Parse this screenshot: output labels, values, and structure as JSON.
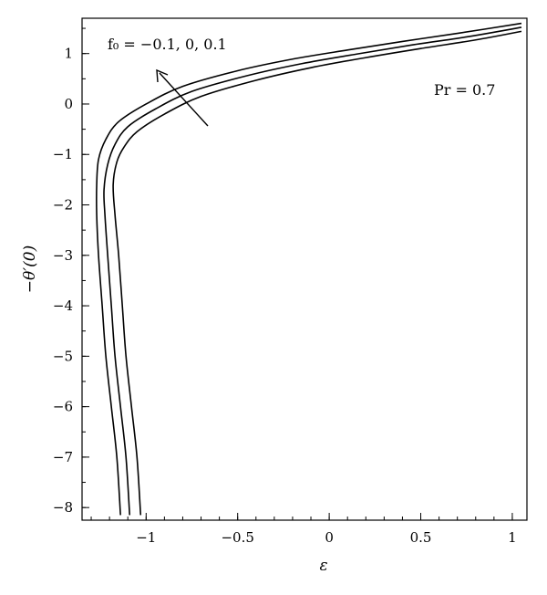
{
  "chart_data": {
    "type": "line",
    "title": "",
    "xlabel": "ε",
    "ylabel": "−θ′(0)",
    "xlim": [
      -1.35,
      1.08
    ],
    "ylim": [
      -8.25,
      1.7
    ],
    "xticks": [
      -1,
      -0.5,
      0,
      0.5,
      1
    ],
    "xtick_labels": [
      "−1",
      "−0.5",
      "0",
      "0.5",
      "1"
    ],
    "yticks": [
      1,
      0,
      -1,
      -2,
      -3,
      -4,
      -5,
      -6,
      -7,
      -8
    ],
    "ytick_labels": [
      "1",
      "0",
      "−1",
      "−2",
      "−3",
      "−4",
      "−5",
      "−6",
      "−7",
      "−8"
    ],
    "grid": false,
    "annotations": {
      "f0_label": "f₀ = −0.1, 0, 0.1",
      "pr_label": "Pr = 0.7"
    },
    "series": [
      {
        "x": [
          -1.14,
          -1.16,
          -1.19,
          -1.22,
          -1.24,
          -1.26,
          -1.27,
          -1.27,
          -1.26,
          -1.22,
          -1.15,
          -1.0,
          -0.8,
          -0.5,
          -0.2,
          0.1,
          0.4,
          0.7,
          1.05
        ],
        "y": [
          -8.15,
          -7.0,
          -6.0,
          -5.0,
          -4.0,
          -3.0,
          -2.2,
          -1.6,
          -1.1,
          -0.7,
          -0.35,
          0.0,
          0.35,
          0.66,
          0.89,
          1.07,
          1.24,
          1.4,
          1.6
        ]
      },
      {
        "x": [
          -1.09,
          -1.11,
          -1.14,
          -1.17,
          -1.19,
          -1.21,
          -1.225,
          -1.23,
          -1.21,
          -1.17,
          -1.1,
          -0.95,
          -0.75,
          -0.45,
          -0.15,
          0.15,
          0.45,
          0.75,
          1.05
        ],
        "y": [
          -8.15,
          -7.0,
          -6.0,
          -5.0,
          -4.0,
          -3.0,
          -2.2,
          -1.7,
          -1.2,
          -0.8,
          -0.45,
          -0.1,
          0.25,
          0.56,
          0.8,
          0.99,
          1.17,
          1.33,
          1.52
        ]
      },
      {
        "x": [
          -1.03,
          -1.05,
          -1.08,
          -1.11,
          -1.13,
          -1.15,
          -1.17,
          -1.18,
          -1.16,
          -1.12,
          -1.05,
          -0.9,
          -0.7,
          -0.4,
          -0.1,
          0.2,
          0.5,
          0.8,
          1.05
        ],
        "y": [
          -8.15,
          -7.0,
          -6.0,
          -5.0,
          -4.0,
          -3.0,
          -2.2,
          -1.6,
          -1.15,
          -0.85,
          -0.55,
          -0.2,
          0.15,
          0.47,
          0.72,
          0.92,
          1.1,
          1.27,
          1.44
        ]
      }
    ]
  }
}
